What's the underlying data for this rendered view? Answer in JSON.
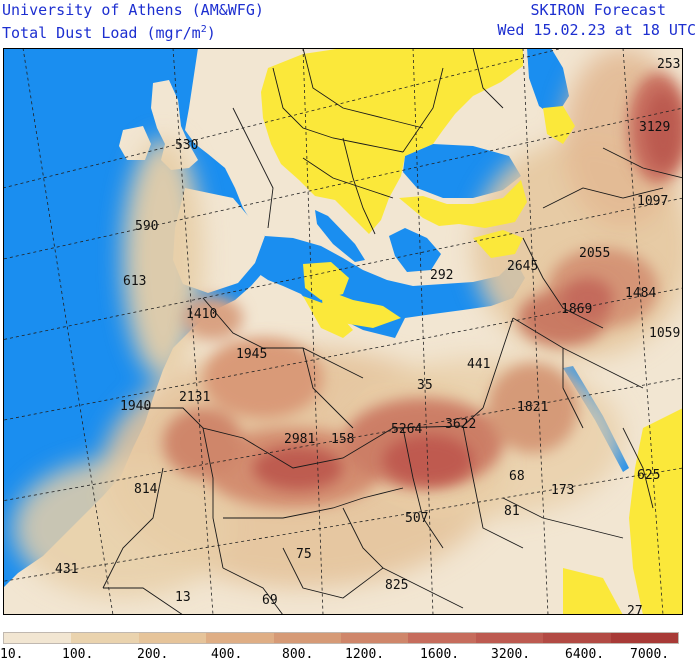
{
  "header": {
    "org": "University of Athens (AM&WFG)",
    "variable": "Total Dust Load (mgr/m",
    "variable_sup": "2",
    "variable_close": ")",
    "product": "SKIRON Forecast",
    "valid_time": "Wed 15.02.23 at 18 UTC"
  },
  "colors": {
    "ocean": "#1a8ef0",
    "land_low": "#f2e6d2",
    "no_data_land": "#fbe83a",
    "borders": "#1a1a1a",
    "graticule": "#222222",
    "header_text": "#1d2fd0"
  },
  "map": {
    "region": "Europe, North Africa and Middle East",
    "projection": "rotated lat-lon",
    "value_labels": [
      {
        "text": "530"
      },
      {
        "text": "590"
      },
      {
        "text": "613"
      },
      {
        "text": "1410"
      },
      {
        "text": "1945"
      },
      {
        "text": "2131"
      },
      {
        "text": "1940"
      },
      {
        "text": "2981"
      },
      {
        "text": "158"
      },
      {
        "text": "5264"
      },
      {
        "text": "3622"
      },
      {
        "text": "35"
      },
      {
        "text": "441"
      },
      {
        "text": "292"
      },
      {
        "text": "1821"
      },
      {
        "text": "2645"
      },
      {
        "text": "2055"
      },
      {
        "text": "1869"
      },
      {
        "text": "1484"
      },
      {
        "text": "1059"
      },
      {
        "text": "1097"
      },
      {
        "text": "3129"
      },
      {
        "text": "253"
      },
      {
        "text": "814"
      },
      {
        "text": "507"
      },
      {
        "text": "81"
      },
      {
        "text": "68"
      },
      {
        "text": "173"
      },
      {
        "text": "625"
      },
      {
        "text": "431"
      },
      {
        "text": "75"
      },
      {
        "text": "13"
      },
      {
        "text": "69"
      },
      {
        "text": "825"
      },
      {
        "text": "27"
      }
    ]
  },
  "legend": {
    "units": "mgr/m2",
    "colors": [
      "#f2e6d2",
      "#ead3ae",
      "#e6c49a",
      "#dfae85",
      "#d69a76",
      "#cf866a",
      "#c66c5c",
      "#bd5a50",
      "#b24a43",
      "#a83a36"
    ],
    "ticks": [
      "10.",
      "100.",
      "200.",
      "400.",
      "800.",
      "1200.",
      "1600.",
      "3200.",
      "6400.",
      "7000."
    ]
  }
}
